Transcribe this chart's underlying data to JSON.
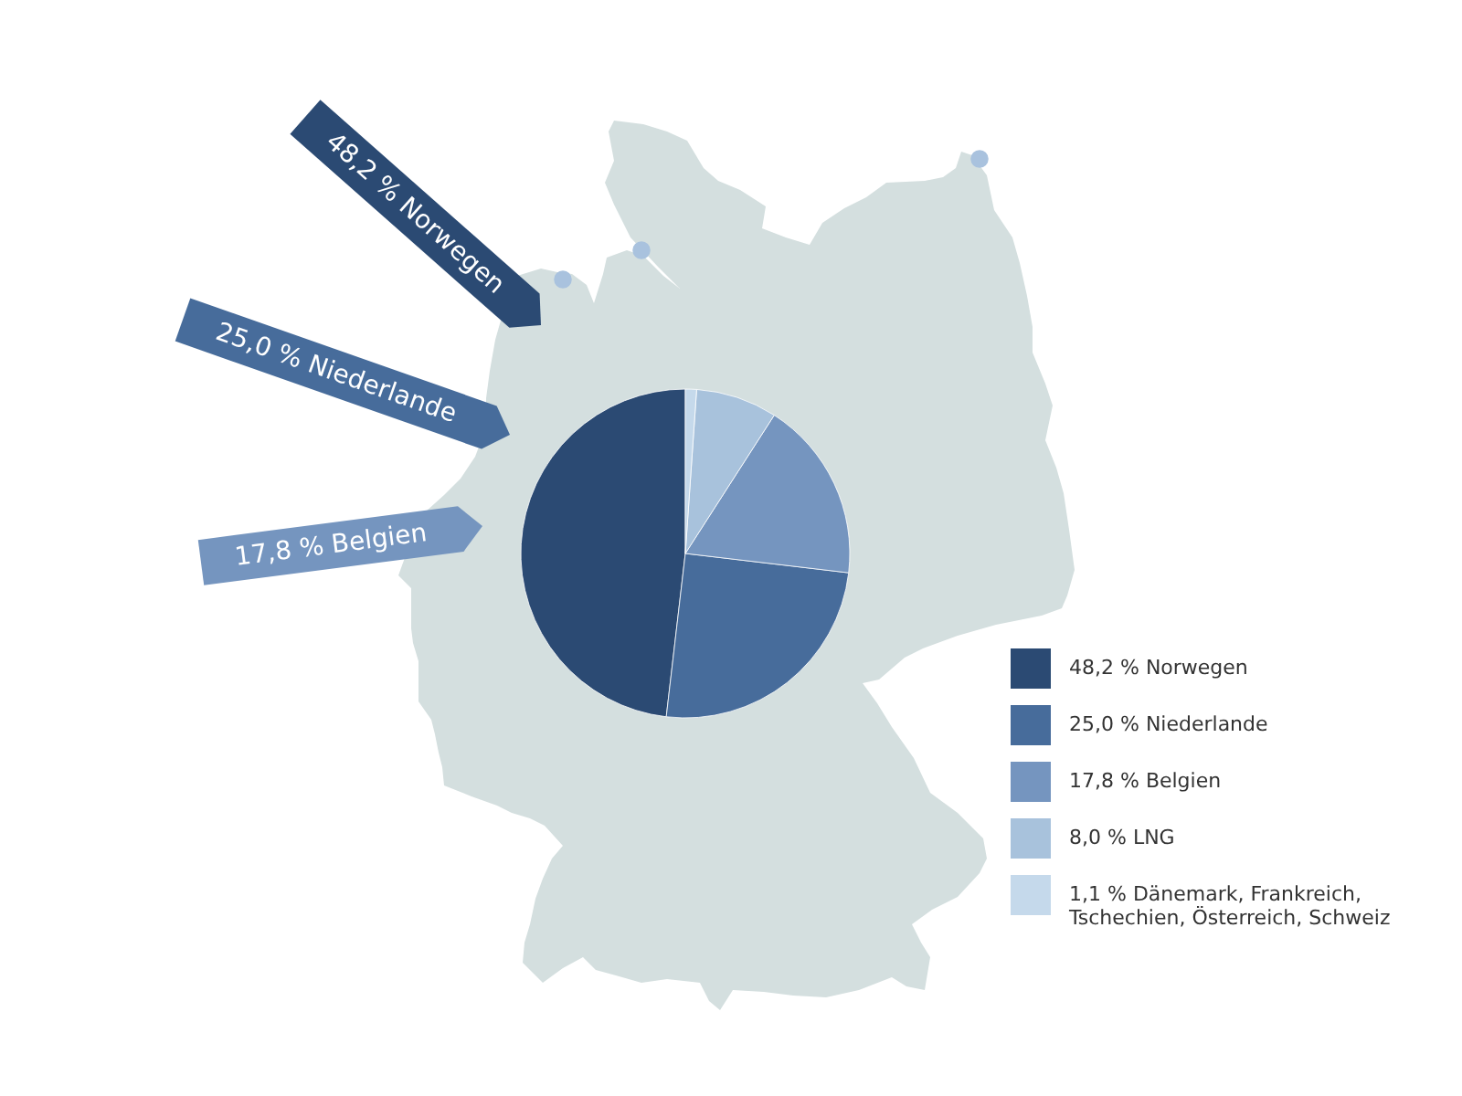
{
  "chart_data": {
    "type": "pie",
    "categories": [
      "48,2 % Norwegen",
      "25,0 % Niederlande",
      "17,8 % Belgien",
      "8,0 % LNG",
      "1,1 % Dänemark, Frankreich, Tschechien, Österreich, Schweiz"
    ],
    "values": [
      48.2,
      25.0,
      17.8,
      8.0,
      1.1
    ],
    "colors": [
      "#2b4a73",
      "#476c9b",
      "#7595bf",
      "#a8c2dc",
      "#c5d9eb"
    ],
    "legend": "right",
    "annotations": [
      "48,2 % Norwegen",
      "25,0 % Niederlande",
      "17,8 % Belgien"
    ]
  }
}
